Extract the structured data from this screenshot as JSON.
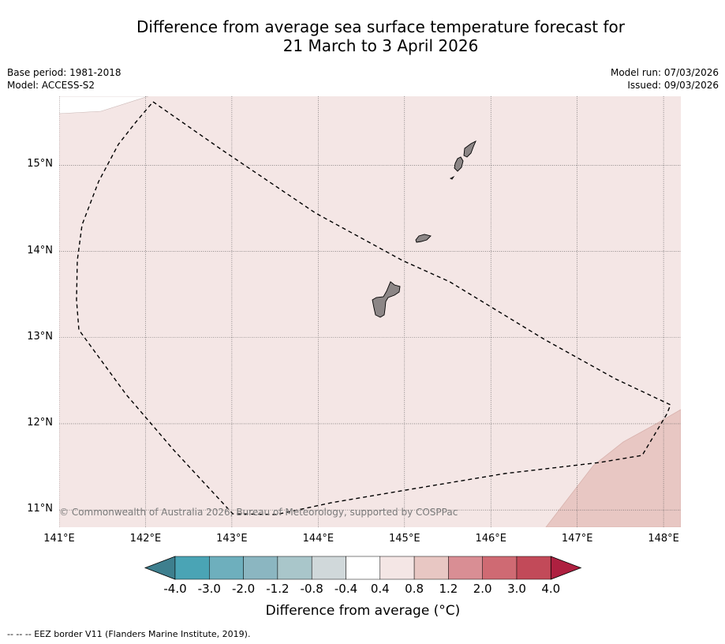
{
  "title": {
    "line1": "Difference from average sea surface temperature forecast for",
    "line2": "21 March to 3 April 2026"
  },
  "meta": {
    "base_period": "Base period: 1981-2018",
    "model": "Model: ACCESS-S2",
    "model_run": "Model run: 07/03/2026",
    "issued": "Issued: 09/03/2026"
  },
  "map": {
    "lon_range": [
      141.0,
      148.2
    ],
    "lat_range": [
      10.8,
      15.8
    ],
    "lat_ticks": [
      "15°N",
      "14°N",
      "13°N",
      "12°N",
      "11°N"
    ],
    "lon_ticks": [
      "141°E",
      "142°E",
      "143°E",
      "144°E",
      "145°E",
      "146°E",
      "147°E",
      "148°E"
    ],
    "copyright": "© Commonwealth of Australia 2026, Bureau of Meteorology, supported by COSPPac",
    "colors": {
      "anomaly_0_4_to_0_8": "#f4e6e5",
      "anomaly_0_8_to_1_2": "#e8c7c3",
      "land": "#8c8686"
    },
    "islands": [
      "guam",
      "rota",
      "tinian",
      "saipan"
    ]
  },
  "colorbar": {
    "title": "Difference from average (°C)",
    "labels": [
      "-4.0",
      "-3.0",
      "-2.0",
      "-1.2",
      "-0.8",
      "-0.4",
      "0.4",
      "0.8",
      "1.2",
      "2.0",
      "3.0",
      "4.0"
    ],
    "colors": [
      "#3e7f8e",
      "#4aa4b5",
      "#6eafbd",
      "#8bb6c1",
      "#a9c6ca",
      "#d0d8da",
      "#ffffff",
      "#f4e6e5",
      "#e8c7c3",
      "#d98e94",
      "#cf6a73",
      "#c24a59",
      "#ae2040"
    ]
  },
  "footnote": "--  --  -- EEZ border V11 (Flanders Marine Institute, 2019)."
}
